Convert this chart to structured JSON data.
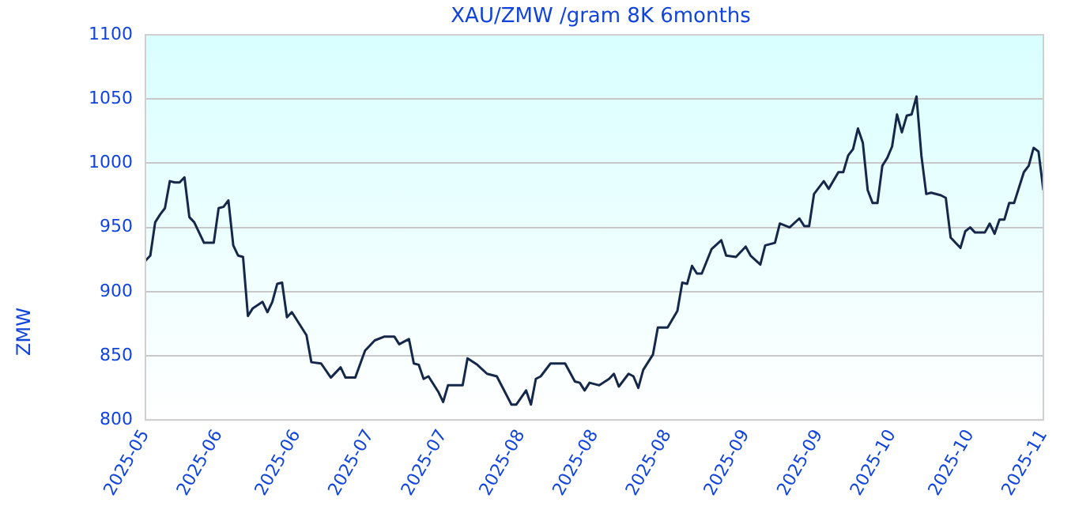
{
  "chart_data": {
    "type": "line",
    "title": "XAU/ZMW /gram 8K 6months",
    "ylabel": "ZMW",
    "x": [
      "2025-05-01",
      "2025-05-02",
      "2025-05-03",
      "2025-05-04",
      "2025-05-05",
      "2025-05-06",
      "2025-05-07",
      "2025-05-08",
      "2025-05-09",
      "2025-05-10",
      "2025-05-11",
      "2025-05-13",
      "2025-05-15",
      "2025-05-16",
      "2025-05-17",
      "2025-05-18",
      "2025-05-19",
      "2025-05-20",
      "2025-05-21",
      "2025-05-22",
      "2025-05-23",
      "2025-05-25",
      "2025-05-26",
      "2025-05-27",
      "2025-05-28",
      "2025-05-29",
      "2025-05-30",
      "2025-05-31",
      "2025-06-02",
      "2025-06-03",
      "2025-06-04",
      "2025-06-06",
      "2025-06-08",
      "2025-06-10",
      "2025-06-11",
      "2025-06-13",
      "2025-06-15",
      "2025-06-17",
      "2025-06-19",
      "2025-06-21",
      "2025-06-22",
      "2025-06-24",
      "2025-06-25",
      "2025-06-26",
      "2025-06-27",
      "2025-06-28",
      "2025-06-30",
      "2025-07-01",
      "2025-07-02",
      "2025-07-04",
      "2025-07-05",
      "2025-07-06",
      "2025-07-08",
      "2025-07-10",
      "2025-07-12",
      "2025-07-15",
      "2025-07-16",
      "2025-07-18",
      "2025-07-19",
      "2025-07-20",
      "2025-07-21",
      "2025-07-23",
      "2025-07-26",
      "2025-07-28",
      "2025-07-29",
      "2025-07-30",
      "2025-07-31",
      "2025-08-02",
      "2025-08-04",
      "2025-08-05",
      "2025-08-06",
      "2025-08-08",
      "2025-08-09",
      "2025-08-10",
      "2025-08-11",
      "2025-08-13",
      "2025-08-14",
      "2025-08-16",
      "2025-08-18",
      "2025-08-19",
      "2025-08-20",
      "2025-08-21",
      "2025-08-22",
      "2025-08-23",
      "2025-08-25",
      "2025-08-27",
      "2025-08-28",
      "2025-08-30",
      "2025-09-01",
      "2025-09-02",
      "2025-09-04",
      "2025-09-05",
      "2025-09-07",
      "2025-09-08",
      "2025-09-10",
      "2025-09-12",
      "2025-09-13",
      "2025-09-14",
      "2025-09-15",
      "2025-09-17",
      "2025-09-18",
      "2025-09-20",
      "2025-09-21",
      "2025-09-22",
      "2025-09-23",
      "2025-09-24",
      "2025-09-25",
      "2025-09-26",
      "2025-09-27",
      "2025-09-28",
      "2025-09-29",
      "2025-09-30",
      "2025-10-01",
      "2025-10-02",
      "2025-10-03",
      "2025-10-04",
      "2025-10-05",
      "2025-10-06",
      "2025-10-07",
      "2025-10-08",
      "2025-10-09",
      "2025-10-11",
      "2025-10-12",
      "2025-10-13",
      "2025-10-15",
      "2025-10-16",
      "2025-10-17",
      "2025-10-18",
      "2025-10-20",
      "2025-10-21",
      "2025-10-22",
      "2025-10-23",
      "2025-10-24",
      "2025-10-25",
      "2025-10-26",
      "2025-10-28",
      "2025-10-29",
      "2025-10-30",
      "2025-10-31",
      "2025-11-01"
    ],
    "series": [
      {
        "color": "#16284a",
        "values": [
          924,
          928,
          954,
          960,
          965,
          986,
          985,
          985,
          989,
          958,
          954,
          938,
          938,
          965,
          966,
          971,
          936,
          928,
          927,
          881,
          887,
          892,
          884,
          892,
          906,
          907,
          880,
          884,
          872,
          866,
          845,
          844,
          833,
          841,
          833,
          833,
          854,
          862,
          865,
          865,
          859,
          863,
          844,
          843,
          832,
          834,
          822,
          814,
          827,
          827,
          827,
          848,
          843,
          836,
          834,
          812,
          812,
          823,
          812,
          832,
          834,
          844,
          844,
          830,
          829,
          823,
          829,
          827,
          832,
          836,
          826,
          836,
          834,
          825,
          839,
          851,
          872,
          872,
          885,
          907,
          906,
          920,
          914,
          914,
          933,
          940,
          928,
          927,
          935,
          928,
          921,
          936,
          938,
          953,
          950,
          957,
          951,
          951,
          976,
          986,
          980,
          993,
          993,
          1006,
          1011,
          1027,
          1016,
          979,
          969,
          969,
          998,
          1004,
          1013,
          1038,
          1024,
          1037,
          1038,
          1052,
          1006,
          976,
          977,
          975,
          973,
          942,
          934,
          947,
          950,
          946,
          946,
          953,
          945,
          956,
          956,
          969,
          969,
          993,
          998,
          1012,
          1009,
          979
        ]
      }
    ],
    "xlim": [
      "2025-05-01",
      "2025-11-01"
    ],
    "xticks": [
      {
        "value": "2025-05-01",
        "label": "2025-05"
      },
      {
        "value": "2025-05-16",
        "label": "2025-06"
      },
      {
        "value": "2025-06-01",
        "label": "2025-06"
      },
      {
        "value": "2025-06-16",
        "label": "2025-07"
      },
      {
        "value": "2025-07-01",
        "label": "2025-07"
      },
      {
        "value": "2025-07-17",
        "label": "2025-08"
      },
      {
        "value": "2025-08-01",
        "label": "2025-08"
      },
      {
        "value": "2025-08-16",
        "label": "2025-08"
      },
      {
        "value": "2025-09-01",
        "label": "2025-09"
      },
      {
        "value": "2025-09-16",
        "label": "2025-09"
      },
      {
        "value": "2025-10-01",
        "label": "2025-10"
      },
      {
        "value": "2025-10-17",
        "label": "2025-10"
      },
      {
        "value": "2025-11-01",
        "label": "2025-11"
      }
    ],
    "ylim": [
      800,
      1100
    ],
    "yticks": [
      800,
      850,
      900,
      950,
      1000,
      1050,
      1100
    ],
    "grid": "y",
    "legend": false,
    "marker": "none",
    "line_style": "solid"
  }
}
